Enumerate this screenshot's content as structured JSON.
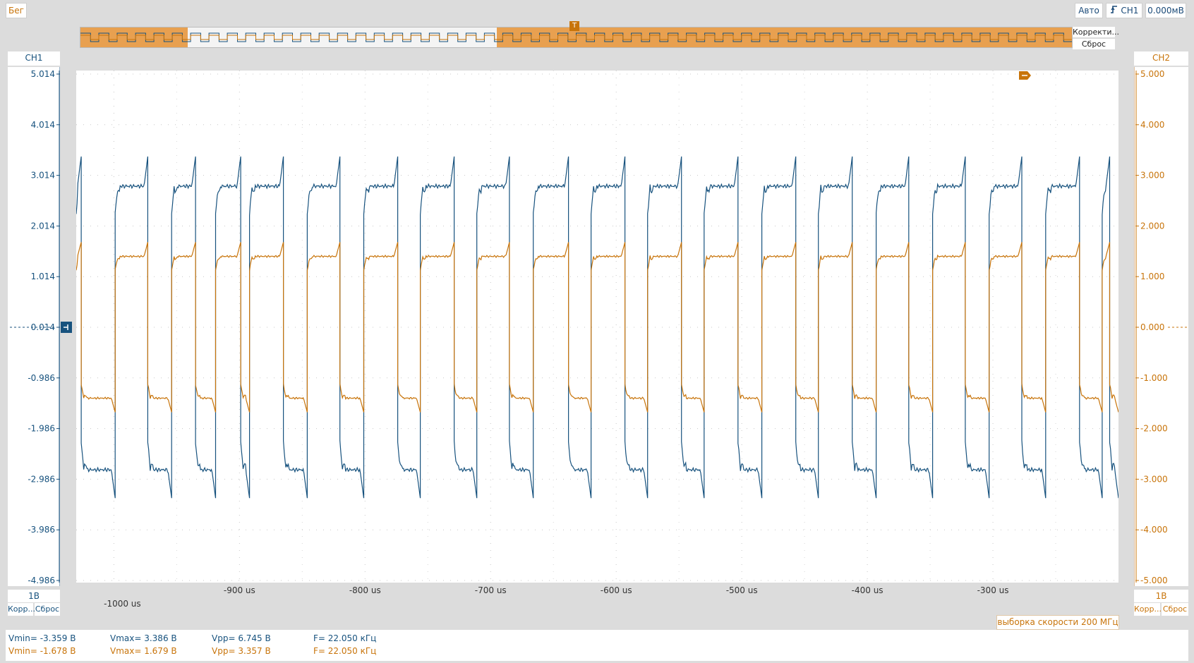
{
  "toolbar": {
    "run_label": "Бег",
    "auto_label": "Авто",
    "trigger_channel": "CH1",
    "trigger_level": "0.000мВ"
  },
  "overview": {
    "correct_label": "Корректи...",
    "reset_label": "Сброс"
  },
  "left_panel": {
    "channel": "CH1",
    "scale": "1В",
    "correct_label": "Корр...",
    "reset_label": "Сброс",
    "color": "#17527e"
  },
  "right_panel": {
    "channel": "CH2",
    "scale": "1В",
    "correct_label": "Корр...",
    "reset_label": "Сброс",
    "color": "#c8740a"
  },
  "sample_rate": "выборка скорости 200 МГц",
  "measurements": {
    "ch1": {
      "vmin": "Vmin= -3.359 В",
      "vmax": "Vmax= 3.386 В",
      "vpp": "Vpp= 6.745 В",
      "freq": "F= 22.050 кГц"
    },
    "ch2": {
      "vmin": "Vmin= -1.678 В",
      "vmax": "Vmax= 1.679 В",
      "vpp": "Vpp= 3.357 В",
      "freq": "F= 22.050 кГц"
    }
  },
  "chart_data": {
    "type": "line",
    "title": "",
    "xlabel": "",
    "ylabel": "",
    "xlim": [
      -1030,
      -200
    ],
    "x_ticks": [
      {
        "value": -1000,
        "label": "-1000 us"
      },
      {
        "value": -900,
        "label": "-900 us"
      },
      {
        "value": -800,
        "label": "-800 us"
      },
      {
        "value": -700,
        "label": "-700 us"
      },
      {
        "value": -600,
        "label": "-600 us"
      },
      {
        "value": -500,
        "label": "-500 us"
      },
      {
        "value": -400,
        "label": "-400 us"
      },
      {
        "value": -300,
        "label": "-300 us"
      }
    ],
    "y_left": {
      "ylim": [
        -4.986,
        5.014
      ],
      "ticks": [
        "5.014",
        "4.014",
        "3.014",
        "2.014",
        "1.014",
        "0.014",
        "-0.986",
        "-1.986",
        "-2.986",
        "-3.986",
        "-4.986"
      ]
    },
    "y_right": {
      "ylim": [
        -5.0,
        5.0
      ],
      "ticks": [
        "5.000",
        "4.000",
        "3.000",
        "2.000",
        "1.000",
        "0.000",
        "-1.000",
        "-2.000",
        "-3.000",
        "-4.000",
        "-5.000"
      ]
    },
    "grid": true,
    "series": [
      {
        "name": "CH1",
        "axis": "left",
        "color": "#17527e",
        "high": 2.8,
        "low": -2.8,
        "peak": 3.386,
        "trough": -3.359,
        "edges_us": [
          -1026,
          -999,
          -973,
          -954,
          -935,
          -919,
          -899,
          -892,
          -865,
          -846,
          -820,
          -801,
          -774,
          -756,
          -729,
          -711,
          -685,
          -666,
          -638,
          -620,
          -593,
          -575,
          -548,
          -530,
          -503,
          -484,
          -457,
          -439,
          -412,
          -393,
          -367,
          -348,
          -322,
          -303,
          -277,
          -258,
          -231,
          -213,
          -207
        ],
        "start_level": "high"
      },
      {
        "name": "CH2",
        "axis": "right",
        "color": "#c8740a",
        "high": 1.4,
        "low": -1.4,
        "peak": 1.679,
        "trough": -1.678,
        "edges_us": [
          -1026,
          -999,
          -973,
          -954,
          -935,
          -919,
          -899,
          -892,
          -865,
          -846,
          -820,
          -801,
          -774,
          -756,
          -729,
          -711,
          -685,
          -666,
          -638,
          -620,
          -593,
          -575,
          -548,
          -530,
          -503,
          -484,
          -457,
          -439,
          -412,
          -393,
          -367,
          -348,
          -322,
          -303,
          -277,
          -258,
          -231,
          -213,
          -207
        ],
        "start_level": "high"
      }
    ]
  }
}
